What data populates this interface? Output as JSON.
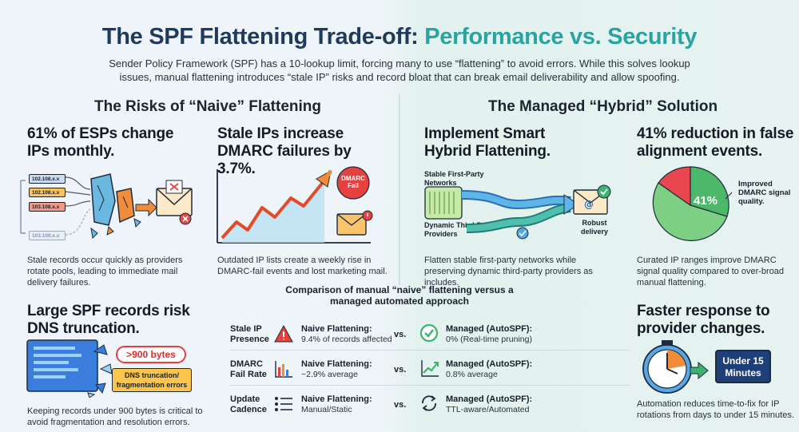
{
  "title": {
    "part1": "The SPF Flattening Trade-off:",
    "part2": "Performance vs. Security"
  },
  "intro": "Sender Policy Framework (SPF) has a 10-lookup limit, forcing many to use “flattening” to avoid errors. While this solves lookup issues, manual flattening introduces “stale IP” risks and record bloat that can break email deliverability and allow spoofing.",
  "left_section": {
    "heading": "The Risks of “Naive” Flattening",
    "card1": {
      "stat": "61% of ESPs change IPs monthly.",
      "ips": [
        "102.108.x.x",
        "102.108.x.x",
        "103.108.x.x",
        "103.108.x.x"
      ],
      "caption": "Stale records occur quickly as providers rotate pools, leading to immediate mail delivery failures."
    },
    "card2": {
      "stat": "Stale IPs increase DMARC failures by 3.7%.",
      "badge": "DMARC Fail",
      "caption": "Outdated IP lists create a weekly rise in DMARC-fail events and lost marketing mail."
    },
    "card3": {
      "stat": "Large SPF records risk DNS truncation.",
      "size_label": ">900 bytes",
      "error_label": "DNS truncation/ fragmentation errors",
      "caption": "Keeping records under 900 bytes is critical to avoid fragmentation and resolution errors."
    }
  },
  "right_section": {
    "heading": "The Managed “Hybrid” Solution",
    "card1": {
      "stat": "Implement Smart Hybrid Flattening.",
      "label_top": "Stable First-Party Networks",
      "label_bottom": "Dynamic Third-Party Providers",
      "label_out": "Robust delivery",
      "caption": "Flatten stable first-party networks while preserving dynamic third-party providers as includes."
    },
    "card2": {
      "stat": "41% reduction in false alignment events.",
      "pie_label": "41%",
      "pie_note": "Improved DMARC signal quality.",
      "caption": "Curated IP ranges improve DMARC signal quality compared to over-broad manual flattening.",
      "colors": {
        "green": "#4cb96a",
        "red": "#e8474f",
        "teal": "#2a9d8f"
      }
    },
    "card3": {
      "stat": "Faster response to provider changes.",
      "box_label": "Under 15 Minutes",
      "caption": "Automation reduces time-to-fix for IP rotations from days to under 15 minutes."
    }
  },
  "comparison": {
    "title": "Comparison of manual “naive” flattening versus a managed automated approach",
    "vs": "vs.",
    "rows": [
      {
        "label": "Stale IP Presence",
        "naive_title": "Naive Flattening:",
        "naive_value": "9.4% of records affected",
        "managed_title": "Managed (AutoSPF):",
        "managed_value": "0% (Real-time pruning)"
      },
      {
        "label": "DMARC Fail Rate",
        "naive_title": "Naive Flattening:",
        "naive_value": "~2.9% average",
        "managed_title": "Managed (AutoSPF):",
        "managed_value": "0.8% average"
      },
      {
        "label": "Update Cadence",
        "naive_title": "Naive Flattening:",
        "naive_value": "Manual/Static",
        "managed_title": "Managed (AutoSPF):",
        "managed_value": "TTL-aware/Automated"
      }
    ]
  }
}
